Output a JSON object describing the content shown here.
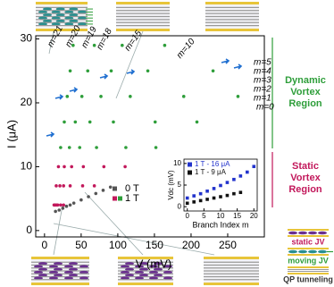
{
  "chart_data": [
    {
      "type": "scatter",
      "xlabel": "V (mV)",
      "ylabel": "I (μA)",
      "xlim": [
        -12,
        300
      ],
      "ylim": [
        -1,
        30.5
      ],
      "xticks": [
        0,
        50,
        100,
        150,
        200,
        250
      ],
      "yticks": [
        0,
        10,
        20,
        30
      ],
      "series": [
        {
          "name": "0 T",
          "color": "#555555",
          "x": [
            15,
            20,
            25,
            30,
            35,
            40,
            50,
            60,
            70,
            80,
            90
          ],
          "values": [
            3,
            3.2,
            3.5,
            3.8,
            4,
            4.3,
            4.8,
            5.3,
            5.8,
            6.3,
            6.8
          ]
        },
        {
          "name": "1 T",
          "x": [
            13,
            16,
            19,
            22,
            27,
            31,
            35,
            39,
            14,
            21,
            27,
            34,
            42,
            51,
            59,
            68,
            16,
            26,
            37,
            48,
            62,
            77,
            91,
            106,
            18,
            35,
            53,
            71,
            94,
            117,
            141,
            164,
            22,
            52,
            81,
            111,
            151,
            190,
            230,
            26,
            68,
            110,
            152,
            208,
            264
          ],
          "values": [
            4,
            7,
            10,
            13,
            17,
            21,
            25,
            29,
            4,
            7,
            10,
            13,
            17,
            21,
            25,
            29,
            4,
            7,
            10,
            13,
            17,
            21,
            25,
            29,
            4,
            7,
            10,
            13,
            17,
            21,
            25,
            29,
            4,
            7,
            10,
            13,
            17,
            21,
            25,
            4,
            7,
            10,
            13,
            17,
            21
          ],
          "colors": [
            "#c2185b",
            "#c2185b",
            "#c2185b",
            "#2e9e3a",
            "#2e9e3a",
            "#2e9e3a",
            "#2e9e3a",
            "#2e9e3a",
            "#c2185b",
            "#c2185b",
            "#c2185b",
            "#2e9e3a",
            "#2e9e3a",
            "#2e9e3a",
            "#2e9e3a",
            "#2e9e3a",
            "#c2185b",
            "#c2185b",
            "#c2185b",
            "#2e9e3a",
            "#2e9e3a",
            "#2e9e3a",
            "#2e9e3a",
            "#2e9e3a",
            "#c2185b",
            "#c2185b",
            "#c2185b",
            "#2e9e3a",
            "#2e9e3a",
            "#2e9e3a",
            "#2e9e3a",
            "#2e9e3a",
            "#c2185b",
            "#c2185b",
            "#c2185b",
            "#2e9e3a",
            "#2e9e3a",
            "#2e9e3a",
            "#2e9e3a",
            "#c2185b",
            "#c2185b",
            "#c2185b",
            "#2e9e3a",
            "#2e9e3a",
            "#2e9e3a"
          ]
        }
      ],
      "branch_labels": [
        "m=21",
        "m=20",
        "m=19",
        "m=18",
        "m=15",
        "m=10",
        "m=5",
        "m=4",
        "m=3",
        "m=2",
        "m=1",
        "m=0"
      ],
      "regions": [
        {
          "text": [
            "Dynamic",
            "Vortex",
            "Region"
          ],
          "color": "#2e9e3a"
        },
        {
          "text": [
            "Static",
            "Vortex",
            "Region"
          ],
          "color": "#c2185b"
        }
      ]
    },
    {
      "type": "scatter",
      "xlabel": "Branch Index m",
      "ylabel": "Vdc (mV)",
      "xlim": [
        -1,
        21
      ],
      "ylim": [
        -1,
        11
      ],
      "xticks": [
        0,
        5,
        10,
        15,
        20
      ],
      "yticks": [
        0,
        5,
        10
      ],
      "series": [
        {
          "name": "1 T - 16 μA",
          "color": "#2233cc",
          "x": [
            0,
            2,
            4,
            6,
            8,
            10,
            12,
            14,
            16,
            18,
            20
          ],
          "values": [
            2,
            2.5,
            3,
            3.6,
            4.2,
            4.9,
            5.6,
            6.3,
            7.1,
            8,
            9.3
          ]
        },
        {
          "name": "1 T - 9 μA",
          "color": "#111111",
          "x": [
            0,
            2,
            4,
            6,
            8,
            10,
            12,
            14,
            16
          ],
          "values": [
            0.8,
            1.1,
            1.4,
            1.7,
            2,
            2.3,
            2.6,
            3,
            3.3
          ]
        }
      ]
    }
  ],
  "schematic_labels": [
    "static JV",
    "moving JV",
    "QP tunneling"
  ]
}
